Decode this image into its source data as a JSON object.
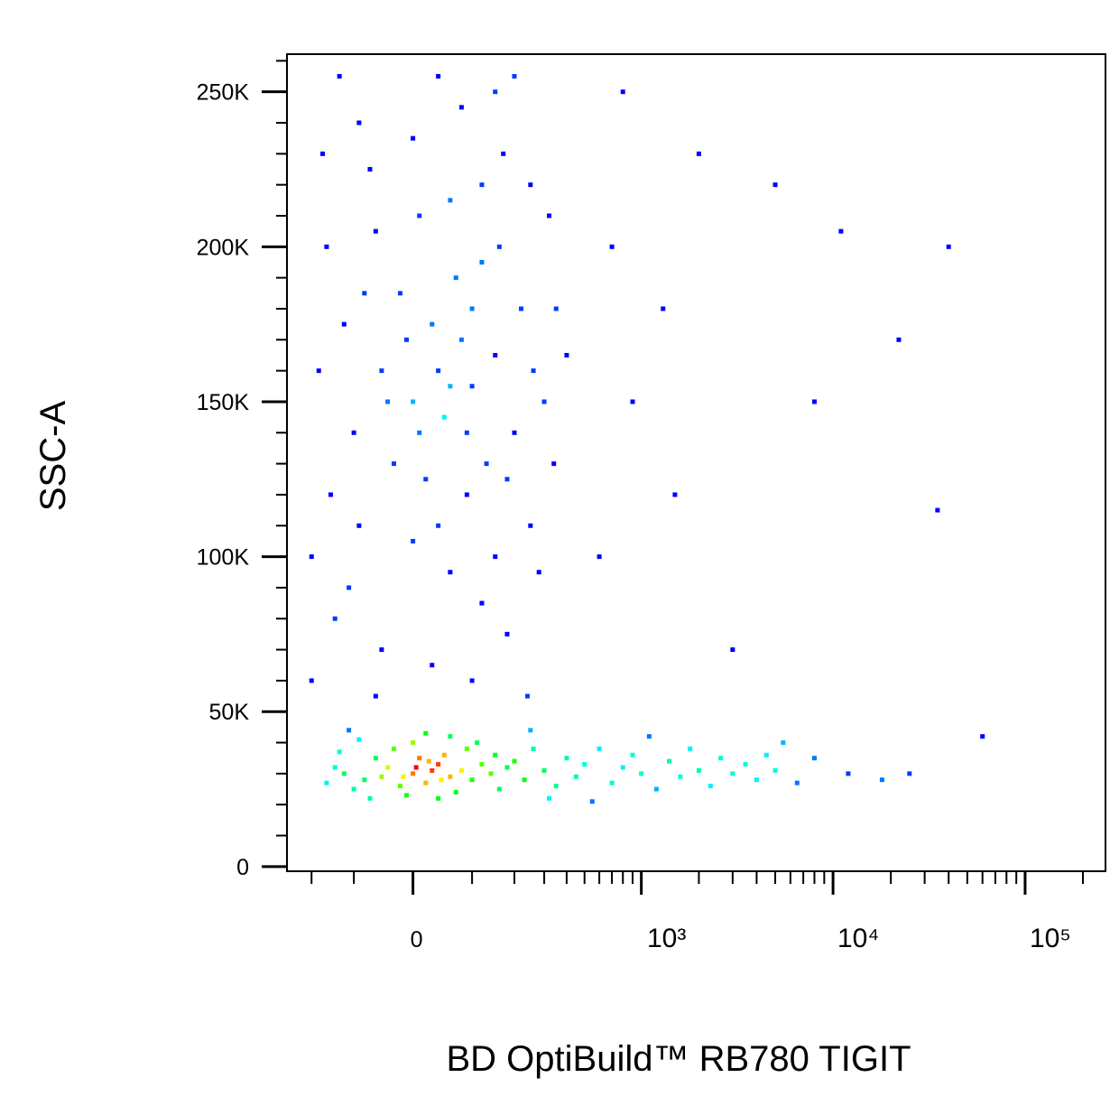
{
  "chart_data": {
    "type": "scatter",
    "x_label": "BD OptiBuild™ RB780 TIGIT",
    "y_label": "SSC-A",
    "xscale": "biexponential",
    "xlim": [
      -280,
      262144
    ],
    "ylim": [
      -1500,
      262144
    ],
    "xticks": [
      0,
      {
        "value": 1000,
        "label": "10³"
      },
      {
        "value": 10000,
        "label": "10⁴"
      },
      {
        "value": 100000,
        "label": "10⁵"
      }
    ],
    "xminorticks": [
      -200,
      -100,
      100,
      200,
      300,
      400,
      500,
      600,
      700,
      800,
      900,
      2000,
      3000,
      4000,
      5000,
      6000,
      7000,
      8000,
      9000,
      20000,
      30000,
      40000,
      50000,
      60000,
      70000,
      80000,
      90000,
      200000
    ],
    "yticks": [
      0,
      {
        "value": 50000,
        "label": "50K"
      },
      {
        "value": 100000,
        "label": "100K"
      },
      {
        "value": 150000,
        "label": "150K"
      },
      {
        "value": 200000,
        "label": "200K"
      },
      {
        "value": 250000,
        "label": "250K"
      }
    ],
    "yminorticks": [
      10000,
      20000,
      30000,
      40000,
      60000,
      70000,
      80000,
      90000,
      110000,
      120000,
      130000,
      140000,
      160000,
      170000,
      180000,
      190000,
      210000,
      220000,
      230000,
      240000,
      260000
    ],
    "colormap": [
      "#0000ff",
      "#00ffff",
      "#00ff00",
      "#ffff00",
      "#ff0000"
    ],
    "x": [
      -120,
      -80,
      -40,
      0,
      20,
      40,
      -60,
      60,
      80,
      -100,
      -20,
      10,
      30,
      -50,
      50,
      100,
      120,
      -140,
      -30,
      70,
      0,
      -90,
      90,
      140,
      -10,
      40,
      -70,
      110,
      150,
      -130,
      20,
      60,
      -110,
      160,
      180,
      -160,
      5,
      -15,
      25,
      45,
      200,
      230,
      260,
      300,
      350,
      400,
      450,
      500,
      600,
      700,
      800,
      900,
      1000,
      1200,
      1400,
      1600,
      1800,
      2000,
      2300,
      2600,
      3000,
      3500,
      4000,
      4500,
      5000,
      5500,
      6500,
      250,
      320,
      550,
      1100,
      8000,
      12000,
      18000,
      25000,
      -150,
      -100,
      -50,
      0,
      50,
      100,
      150,
      200,
      -120,
      -80,
      30,
      80,
      130,
      -30,
      20,
      70,
      120,
      -160,
      -60,
      10,
      60,
      160,
      220,
      260,
      300,
      -180,
      -200,
      -90,
      0,
      60,
      120,
      -140,
      -50,
      30,
      180,
      -110,
      40,
      90,
      -10,
      40,
      90,
      10,
      -40,
      60,
      -20,
      100,
      180,
      250,
      -170,
      -90,
      0,
      80,
      170,
      250,
      320,
      350,
      -130,
      40,
      150,
      200,
      -200,
      100,
      240,
      -60,
      280,
      340,
      400,
      150,
      -70,
      120,
      600,
      900,
      1300,
      800,
      2000,
      1500,
      3000,
      5000,
      8000,
      11000,
      22000,
      40000,
      35000,
      60000,
      700
    ],
    "values": [
      30000,
      28000,
      32000,
      30000,
      27000,
      33000,
      35000,
      29000,
      31000,
      25000,
      26000,
      35000,
      31000,
      29000,
      36000,
      28000,
      33000,
      32000,
      38000,
      24000,
      40000,
      41000,
      38000,
      30000,
      23000,
      22000,
      22000,
      40000,
      36000,
      37000,
      43000,
      42000,
      44000,
      25000,
      32000,
      27000,
      32000,
      29000,
      34000,
      28000,
      34000,
      28000,
      38000,
      31000,
      26000,
      35000,
      29000,
      33000,
      38000,
      27000,
      32000,
      36000,
      30000,
      25000,
      34000,
      29000,
      38000,
      31000,
      26000,
      35000,
      30000,
      33000,
      28000,
      36000,
      31000,
      40000,
      27000,
      44000,
      22000,
      21000,
      42000,
      35000,
      30000,
      28000,
      30000,
      120000,
      140000,
      160000,
      150000,
      145000,
      155000,
      165000,
      140000,
      175000,
      185000,
      175000,
      170000,
      130000,
      130000,
      125000,
      190000,
      195000,
      200000,
      205000,
      210000,
      215000,
      200000,
      180000,
      160000,
      150000,
      160000,
      100000,
      110000,
      105000,
      95000,
      85000,
      80000,
      70000,
      65000,
      75000,
      90000,
      110000,
      120000,
      170000,
      160000,
      140000,
      140000,
      150000,
      155000,
      185000,
      180000,
      125000,
      110000,
      230000,
      240000,
      235000,
      245000,
      230000,
      220000,
      210000,
      180000,
      255000,
      255000,
      250000,
      255000,
      60000,
      60000,
      55000,
      55000,
      95000,
      130000,
      165000,
      100000,
      225000,
      220000,
      100000,
      150000,
      180000,
      250000,
      230000,
      120000,
      70000,
      220000,
      150000,
      205000,
      170000,
      200000,
      115000,
      42000,
      200000
    ]
  }
}
